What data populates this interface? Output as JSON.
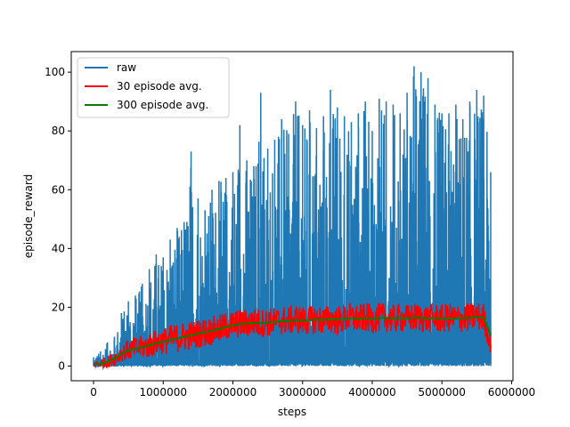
{
  "chart_data": {
    "type": "line",
    "title": "",
    "xlabel": "steps",
    "ylabel": "episode_reward",
    "xlim": [
      -320000,
      6020000
    ],
    "ylim": [
      -5,
      107
    ],
    "x_ticks": [
      0,
      1000000,
      2000000,
      3000000,
      4000000,
      5000000,
      6000000
    ],
    "x_tick_labels": [
      "0",
      "1000000",
      "2000000",
      "3000000",
      "4000000",
      "5000000",
      "6000000"
    ],
    "y_ticks": [
      0,
      20,
      40,
      60,
      80,
      100
    ],
    "y_tick_labels": [
      "0",
      "20",
      "40",
      "60",
      "80",
      "100"
    ],
    "grid": false,
    "legend_position": "upper-left",
    "series": [
      {
        "name": "raw",
        "color": "#1f77b4",
        "x": [
          0,
          100000,
          200000,
          300000,
          400000,
          500000,
          600000,
          700000,
          800000,
          900000,
          1000000,
          1100000,
          1200000,
          1300000,
          1400000,
          1500000,
          1600000,
          1700000,
          1800000,
          1900000,
          2000000,
          2100000,
          2200000,
          2300000,
          2400000,
          2500000,
          2600000,
          2700000,
          2800000,
          2900000,
          3000000,
          3100000,
          3200000,
          3300000,
          3400000,
          3500000,
          3600000,
          3700000,
          3800000,
          3900000,
          4000000,
          4100000,
          4200000,
          4300000,
          4400000,
          4500000,
          4600000,
          4700000,
          4800000,
          4900000,
          5000000,
          5100000,
          5200000,
          5300000,
          5400000,
          5500000,
          5600000,
          5700000
        ],
        "y_max": [
          3,
          5,
          8,
          10,
          18,
          22,
          24,
          28,
          33,
          38,
          37,
          43,
          47,
          49,
          73,
          57,
          53,
          60,
          63,
          64,
          66,
          82,
          70,
          68,
          93,
          74,
          77,
          84,
          79,
          90,
          82,
          87,
          81,
          85,
          94,
          88,
          85,
          83,
          86,
          90,
          80,
          91,
          90,
          89,
          86,
          93,
          102,
          100,
          98,
          89,
          86,
          86,
          89,
          84,
          90,
          94,
          92,
          66
        ],
        "y_min": [
          0,
          0,
          0,
          0,
          0,
          0,
          0,
          0,
          0,
          0,
          0,
          0,
          0,
          0,
          0,
          0,
          0,
          0,
          0,
          0,
          0,
          0,
          0,
          0,
          0,
          0,
          0,
          0,
          0,
          0,
          0,
          0,
          0,
          0,
          0,
          0,
          0,
          0,
          0,
          0,
          0,
          0,
          0,
          0,
          0,
          0,
          0,
          0,
          0,
          0,
          0,
          0,
          0,
          0,
          0,
          0,
          0,
          0
        ]
      },
      {
        "name": "30 episode avg.",
        "color": "#ff0000",
        "x": [
          0,
          100000,
          200000,
          300000,
          400000,
          500000,
          600000,
          700000,
          800000,
          900000,
          1000000,
          1100000,
          1200000,
          1300000,
          1400000,
          1500000,
          1600000,
          1700000,
          1800000,
          1900000,
          2000000,
          2100000,
          2200000,
          2300000,
          2400000,
          2500000,
          2600000,
          2700000,
          2800000,
          2900000,
          3000000,
          3100000,
          3200000,
          3300000,
          3400000,
          3500000,
          3600000,
          3700000,
          3800000,
          3900000,
          4000000,
          4100000,
          4200000,
          4300000,
          4400000,
          4500000,
          4600000,
          4700000,
          4800000,
          4900000,
          5000000,
          5100000,
          5200000,
          5300000,
          5400000,
          5500000,
          5600000,
          5700000
        ],
        "y": [
          0.5,
          0.8,
          1.5,
          2.5,
          4.5,
          5.5,
          6.0,
          6.5,
          7.0,
          8.0,
          8.5,
          9.0,
          9.5,
          10.0,
          10.5,
          11.0,
          11.5,
          12.0,
          12.5,
          13.5,
          14.0,
          14.5,
          14.5,
          15.0,
          14.5,
          15.0,
          15.0,
          15.5,
          15.5,
          16.0,
          15.5,
          15.5,
          16.0,
          15.5,
          16.0,
          15.5,
          16.0,
          16.5,
          16.0,
          16.5,
          16.0,
          16.5,
          16.5,
          16.0,
          16.5,
          16.0,
          16.5,
          16.5,
          16.0,
          16.5,
          16.0,
          16.5,
          16.0,
          16.5,
          16.5,
          17.0,
          16.5,
          7.0
        ],
        "band": [
          1.0,
          1.5,
          2.0,
          2.5,
          3.0,
          3.5,
          4.0,
          4.0,
          4.5,
          4.5,
          4.5,
          5.0,
          5.0,
          5.0,
          5.0,
          5.0,
          5.0,
          5.0,
          5.0,
          5.0,
          5.0,
          5.0,
          5.0,
          5.0,
          5.0,
          5.0,
          5.0,
          5.0,
          5.0,
          5.0,
          5.0,
          5.0,
          5.0,
          5.0,
          5.0,
          5.0,
          5.0,
          5.0,
          5.0,
          5.0,
          5.0,
          5.0,
          5.0,
          5.0,
          5.0,
          5.0,
          5.0,
          5.0,
          5.0,
          5.0,
          5.0,
          5.0,
          5.0,
          5.0,
          5.0,
          5.0,
          5.0,
          3.0
        ]
      },
      {
        "name": "300 episode avg.",
        "color": "#008000",
        "x": [
          0,
          100000,
          200000,
          300000,
          400000,
          500000,
          600000,
          700000,
          800000,
          900000,
          1000000,
          1100000,
          1200000,
          1300000,
          1400000,
          1500000,
          1600000,
          1700000,
          1800000,
          1900000,
          2000000,
          2100000,
          2200000,
          2300000,
          2400000,
          2500000,
          2600000,
          2700000,
          2800000,
          2900000,
          3000000,
          3100000,
          3200000,
          3300000,
          3400000,
          3500000,
          3600000,
          3700000,
          3800000,
          3900000,
          4000000,
          4100000,
          4200000,
          4300000,
          4400000,
          4500000,
          4600000,
          4700000,
          4800000,
          4900000,
          5000000,
          5100000,
          5200000,
          5300000,
          5400000,
          5500000,
          5600000,
          5700000
        ],
        "y": [
          0.5,
          0.8,
          1.5,
          2.5,
          4.2,
          5.3,
          5.8,
          6.4,
          7.0,
          7.8,
          8.3,
          8.9,
          9.4,
          10.0,
          10.4,
          11.0,
          11.5,
          12.0,
          12.6,
          13.3,
          13.9,
          14.3,
          14.5,
          14.7,
          14.6,
          14.8,
          15.0,
          15.3,
          15.4,
          15.6,
          15.5,
          15.6,
          15.8,
          15.7,
          15.9,
          15.8,
          16.0,
          16.2,
          16.1,
          16.3,
          16.2,
          16.3,
          16.4,
          16.2,
          16.3,
          16.2,
          16.4,
          16.4,
          16.2,
          16.3,
          16.1,
          16.2,
          16.1,
          16.3,
          16.4,
          16.8,
          16.4,
          10.5
        ]
      }
    ]
  }
}
